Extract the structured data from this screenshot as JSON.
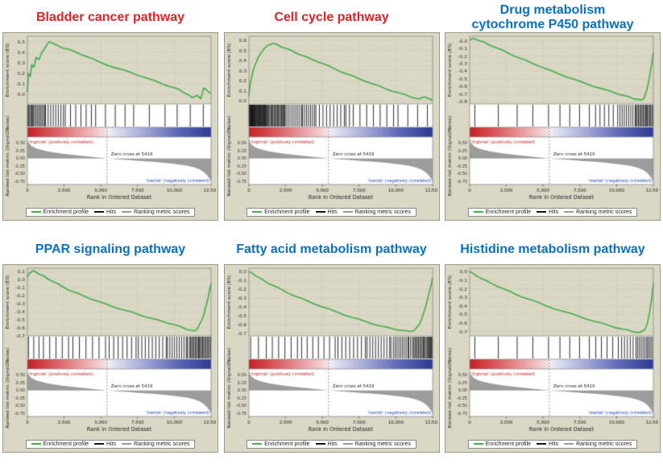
{
  "style": {
    "panel_bg": "#dbd7c5",
    "title_red": "#e32227",
    "title_blue": "#0a70c0",
    "curve_color": "#3fae49",
    "mountain": "#9c9c9c",
    "hit_color": "#141414",
    "pos_text_color": "#cc2222",
    "neg_text_color": "#2244bb",
    "colorbar": [
      [
        0,
        "#c81f25"
      ],
      [
        0.18,
        "#dd6a6e"
      ],
      [
        0.33,
        "#eeb2b4"
      ],
      [
        0.42,
        "#f4dcdc"
      ],
      [
        0.4335,
        "#f2f1f5"
      ],
      [
        0.52,
        "#cfd2ea"
      ],
      [
        0.66,
        "#9aa0d6"
      ],
      [
        0.82,
        "#5d68b5"
      ],
      [
        1,
        "#2d3a92"
      ]
    ]
  },
  "chart_data": {
    "type": "line",
    "shared": {
      "xlabel": "Rank in Ordered Dataset",
      "xmax": 12500,
      "x_ticks": {
        "values": [
          0,
          2500,
          5000,
          7500,
          10000,
          12500
        ],
        "labels": [
          "0",
          "2,500",
          "5,000",
          "7,500",
          "10,000",
          "12,500"
        ]
      },
      "es_ylabel": "Enrichment score (ES)",
      "ranked_ylabel": "Ranked list metric (Signal2Noise)",
      "zero_cross": 5419,
      "zero_cross_label": "Zero cross at 5419",
      "pos_label": "'highrisk' (positively correlated)",
      "neg_label": "'lowrisk' (negatively correlated)",
      "ranked_yticks": [
        0.5,
        0.25,
        0.0,
        -0.25,
        -0.5,
        -0.75
      ],
      "ranked_ylim": [
        -0.85,
        0.7
      ],
      "ranked_curve": {
        "x": [
          0,
          100,
          250,
          450,
          700,
          1000,
          1400,
          1900,
          2500,
          3200,
          4000,
          4800,
          5419,
          6000,
          6800,
          7600,
          8500,
          9400,
          10200,
          10900,
          11400,
          11800,
          12050,
          12250,
          12400,
          12500
        ],
        "y": [
          0.62,
          0.5,
          0.42,
          0.36,
          0.31,
          0.27,
          0.23,
          0.19,
          0.15,
          0.11,
          0.07,
          0.03,
          0.0,
          -0.02,
          -0.05,
          -0.08,
          -0.11,
          -0.15,
          -0.19,
          -0.24,
          -0.3,
          -0.38,
          -0.46,
          -0.56,
          -0.66,
          -0.78
        ]
      },
      "legend": {
        "profile": "Enrichment profile",
        "hits": "Hits",
        "ranking": "Ranking metric scores"
      }
    },
    "charts": [
      {
        "title": "Bladder cancer pathway",
        "title_color": "#e32227",
        "es_ylim": [
          -0.09,
          0.55
        ],
        "es_yticks": [
          0.5,
          0.4,
          0.3,
          0.2,
          0.1,
          0.0
        ],
        "es_curve": {
          "x": [
            0,
            80,
            200,
            300,
            450,
            600,
            800,
            1000,
            1200,
            1500,
            1800,
            2200,
            2700,
            3300,
            4000,
            5000,
            6000,
            7000,
            8000,
            9000,
            9800,
            10400,
            10900,
            11200,
            11500,
            11800,
            12000,
            12200,
            12500
          ],
          "y": [
            0.02,
            0.2,
            0.17,
            0.28,
            0.26,
            0.35,
            0.33,
            0.4,
            0.44,
            0.5,
            0.48,
            0.45,
            0.43,
            0.4,
            0.36,
            0.3,
            0.25,
            0.21,
            0.16,
            0.11,
            0.07,
            0.04,
            0.0,
            -0.03,
            -0.01,
            -0.04,
            0.06,
            0.04,
            0.01
          ]
        },
        "hits": [
          [
            0,
            400,
            6
          ],
          [
            400,
            1200,
            9
          ],
          [
            1200,
            2500,
            8
          ],
          [
            2500,
            4500,
            6
          ],
          [
            4500,
            7000,
            4
          ],
          [
            7000,
            10000,
            3
          ],
          [
            10000,
            12500,
            3
          ]
        ]
      },
      {
        "title": "Cell cycle pathway",
        "title_color": "#e32227",
        "es_ylim": [
          -0.03,
          0.64
        ],
        "es_yticks": [
          0.6,
          0.5,
          0.4,
          0.3,
          0.2,
          0.1,
          0.0
        ],
        "es_curve": {
          "x": [
            0,
            100,
            250,
            400,
            600,
            800,
            1000,
            1300,
            1600,
            2000,
            2500,
            3000,
            3600,
            4300,
            5000,
            5800,
            6600,
            7500,
            8400,
            9300,
            10200,
            11000,
            11600,
            12000,
            12300,
            12500
          ],
          "y": [
            0.05,
            0.18,
            0.28,
            0.35,
            0.42,
            0.47,
            0.51,
            0.55,
            0.57,
            0.55,
            0.52,
            0.49,
            0.45,
            0.41,
            0.37,
            0.32,
            0.27,
            0.22,
            0.17,
            0.12,
            0.08,
            0.04,
            0.02,
            0.04,
            0.02,
            0.0
          ]
        },
        "hits": [
          [
            0,
            400,
            16
          ],
          [
            400,
            1200,
            22
          ],
          [
            1200,
            2500,
            20
          ],
          [
            2500,
            4500,
            16
          ],
          [
            4500,
            7000,
            11
          ],
          [
            7000,
            10000,
            7
          ],
          [
            10000,
            12500,
            4
          ]
        ]
      },
      {
        "title": "Drug metabolism\ncytochrome P450 pathway",
        "title_color": "#0a70c0",
        "es_ylim": [
          -0.83,
          0.06
        ],
        "es_yticks": [
          0.0,
          -0.1,
          -0.2,
          -0.3,
          -0.4,
          -0.5,
          -0.6,
          -0.7,
          -0.8
        ],
        "es_curve": {
          "x": [
            0,
            300,
            700,
            1200,
            1800,
            2500,
            3300,
            4200,
            5100,
            6000,
            7000,
            8000,
            9000,
            9800,
            10500,
            11000,
            11400,
            11700,
            11900,
            12050,
            12200,
            12350,
            12500
          ],
          "y": [
            0.01,
            0.03,
            0.0,
            -0.04,
            -0.09,
            -0.15,
            -0.22,
            -0.29,
            -0.36,
            -0.43,
            -0.5,
            -0.57,
            -0.63,
            -0.68,
            -0.72,
            -0.75,
            -0.77,
            -0.78,
            -0.74,
            -0.65,
            -0.52,
            -0.35,
            -0.15
          ]
        },
        "hits": [
          [
            0,
            3000,
            2
          ],
          [
            3000,
            6000,
            3
          ],
          [
            6000,
            8500,
            4
          ],
          [
            8500,
            10200,
            6
          ],
          [
            10200,
            11300,
            8
          ],
          [
            11300,
            12000,
            9
          ],
          [
            12000,
            12500,
            7
          ]
        ]
      },
      {
        "title": "PPAR signaling pathway",
        "title_color": "#0a70c0",
        "es_ylim": [
          -0.7,
          0.14
        ],
        "es_yticks": [
          0.1,
          0.0,
          -0.1,
          -0.2,
          -0.3,
          -0.4,
          -0.5,
          -0.6,
          -0.7
        ],
        "es_curve": {
          "x": [
            0,
            150,
            350,
            600,
            900,
            1300,
            1800,
            2400,
            3100,
            3900,
            4800,
            5700,
            6600,
            7500,
            8400,
            9200,
            10000,
            10600,
            11100,
            11400,
            11600,
            11800,
            12000,
            12200,
            12350,
            12500
          ],
          "y": [
            0.03,
            0.08,
            0.11,
            0.09,
            0.06,
            0.02,
            -0.03,
            -0.09,
            -0.15,
            -0.21,
            -0.27,
            -0.33,
            -0.38,
            -0.43,
            -0.48,
            -0.52,
            -0.56,
            -0.6,
            -0.63,
            -0.64,
            -0.6,
            -0.53,
            -0.44,
            -0.3,
            -0.18,
            -0.05
          ]
        },
        "hits": [
          [
            0,
            1000,
            3
          ],
          [
            1000,
            3000,
            5
          ],
          [
            3000,
            5500,
            6
          ],
          [
            5500,
            7500,
            7
          ],
          [
            7500,
            9500,
            9
          ],
          [
            9500,
            11000,
            10
          ],
          [
            11000,
            11900,
            12
          ],
          [
            11900,
            12500,
            8
          ]
        ]
      },
      {
        "title": "Fatty acid metabolism pathway",
        "title_color": "#0a70c0",
        "es_ylim": [
          -0.73,
          0.04
        ],
        "es_yticks": [
          0.0,
          -0.1,
          -0.2,
          -0.3,
          -0.4,
          -0.5,
          -0.6,
          -0.7
        ],
        "es_curve": {
          "x": [
            0,
            250,
            600,
            1100,
            1700,
            2400,
            3200,
            4100,
            5000,
            6000,
            7000,
            8000,
            9000,
            9800,
            10500,
            11000,
            11300,
            11550,
            11750,
            11950,
            12150,
            12350,
            12500
          ],
          "y": [
            0.0,
            -0.02,
            -0.06,
            -0.11,
            -0.16,
            -0.22,
            -0.28,
            -0.34,
            -0.4,
            -0.46,
            -0.52,
            -0.57,
            -0.62,
            -0.65,
            -0.67,
            -0.68,
            -0.66,
            -0.61,
            -0.54,
            -0.44,
            -0.32,
            -0.18,
            -0.07
          ]
        },
        "hits": [
          [
            0,
            1500,
            3
          ],
          [
            1500,
            3500,
            5
          ],
          [
            3500,
            6000,
            7
          ],
          [
            6000,
            8000,
            8
          ],
          [
            8000,
            9800,
            10
          ],
          [
            9800,
            11200,
            12
          ],
          [
            11200,
            12200,
            13
          ],
          [
            12200,
            12500,
            6
          ]
        ]
      },
      {
        "title": "Histidine metabolism pathway",
        "title_color": "#0a70c0",
        "es_ylim": [
          -0.75,
          0.04
        ],
        "es_yticks": [
          0.0,
          -0.1,
          -0.2,
          -0.3,
          -0.4,
          -0.5,
          -0.6,
          -0.7
        ],
        "es_curve": {
          "x": [
            0,
            300,
            800,
            1500,
            2300,
            3200,
            4200,
            5200,
            6300,
            7400,
            8500,
            9500,
            10400,
            11100,
            11600,
            11900,
            12100,
            12250,
            12400,
            12500
          ],
          "y": [
            0.0,
            -0.03,
            -0.08,
            -0.14,
            -0.2,
            -0.27,
            -0.33,
            -0.4,
            -0.46,
            -0.52,
            -0.58,
            -0.63,
            -0.67,
            -0.7,
            -0.71,
            -0.68,
            -0.6,
            -0.47,
            -0.3,
            -0.14
          ]
        },
        "hits": [
          [
            0,
            3000,
            2
          ],
          [
            3000,
            6000,
            3
          ],
          [
            6000,
            8500,
            4
          ],
          [
            8500,
            10300,
            5
          ],
          [
            10300,
            11400,
            6
          ],
          [
            11400,
            12100,
            6
          ],
          [
            12100,
            12500,
            4
          ]
        ]
      }
    ]
  }
}
